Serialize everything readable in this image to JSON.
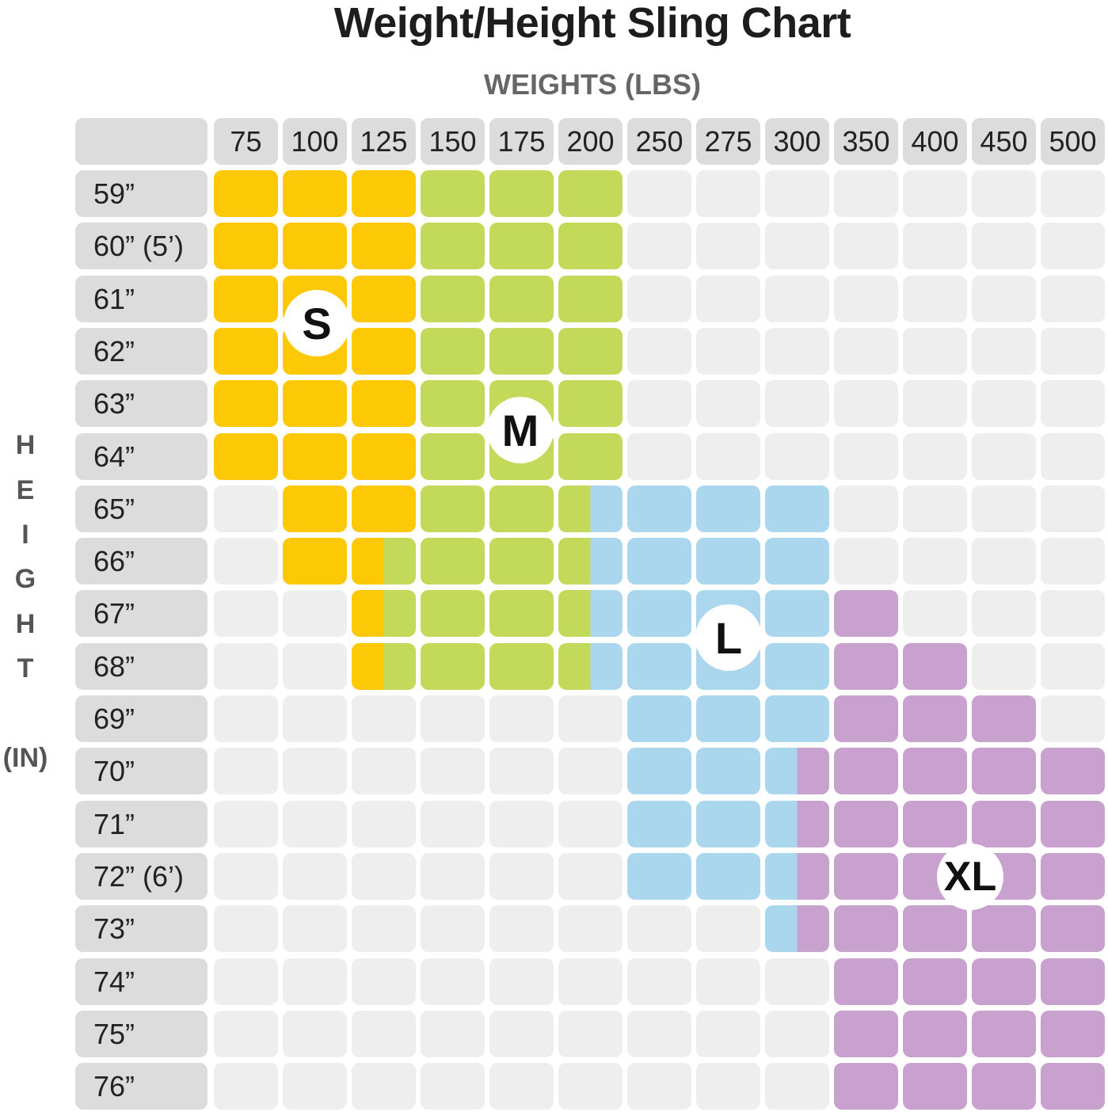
{
  "chart_data": {
    "type": "table",
    "title": "Weight/Height Sling Chart",
    "xlabel": "WEIGHTS (LBS)",
    "ylabel": [
      "H",
      "E",
      "I",
      "G",
      "H",
      "T",
      "(IN)"
    ],
    "weights": [
      "75",
      "100",
      "125",
      "150",
      "175",
      "200",
      "250",
      "275",
      "300",
      "350",
      "400",
      "450",
      "500"
    ],
    "heights": [
      "59”",
      "60” (5’)",
      "61”",
      "62”",
      "63”",
      "64”",
      "65”",
      "66”",
      "67”",
      "68”",
      "69”",
      "70”",
      "71”",
      "72” (6’)",
      "73”",
      "74”",
      "75”",
      "76”"
    ],
    "sizes": {
      "S": "S",
      "M": "M",
      "L": "L",
      "XL": "XL"
    },
    "colors": {
      "S": "#fdc907",
      "M": "#c3d95a",
      "L": "#abd7ee",
      "XL": "#c9a1cf",
      "empty": "#eeeeee",
      "header": "#dcdcdc"
    },
    "grid": [
      [
        "S",
        "S",
        "S",
        "M",
        "M",
        "M",
        "",
        "",
        "",
        "",
        "",
        "",
        ""
      ],
      [
        "S",
        "S",
        "S",
        "M",
        "M",
        "M",
        "",
        "",
        "",
        "",
        "",
        "",
        ""
      ],
      [
        "S",
        "S",
        "S",
        "M",
        "M",
        "M",
        "",
        "",
        "",
        "",
        "",
        "",
        ""
      ],
      [
        "S",
        "S",
        "S",
        "M",
        "M",
        "M",
        "",
        "",
        "",
        "",
        "",
        "",
        ""
      ],
      [
        "S",
        "S",
        "S",
        "M",
        "M",
        "M",
        "",
        "",
        "",
        "",
        "",
        "",
        ""
      ],
      [
        "S",
        "S",
        "S",
        "M",
        "M",
        "M",
        "",
        "",
        "",
        "",
        "",
        "",
        ""
      ],
      [
        "",
        "S",
        "S",
        "M",
        "M",
        "M/L",
        "L",
        "L",
        "L",
        "",
        "",
        "",
        ""
      ],
      [
        "",
        "S",
        "S/M",
        "M",
        "M",
        "M/L",
        "L",
        "L",
        "L",
        "",
        "",
        "",
        ""
      ],
      [
        "",
        "",
        "S/M",
        "M",
        "M",
        "M/L",
        "L",
        "L",
        "L",
        "XL",
        "",
        "",
        ""
      ],
      [
        "",
        "",
        "S/M",
        "M",
        "M",
        "M/L",
        "L",
        "L",
        "L",
        "XL",
        "XL",
        "",
        ""
      ],
      [
        "",
        "",
        "",
        "",
        "",
        "",
        "L",
        "L",
        "L",
        "XL",
        "XL",
        "XL",
        ""
      ],
      [
        "",
        "",
        "",
        "",
        "",
        "",
        "L",
        "L",
        "L/XL",
        "XL",
        "XL",
        "XL",
        "XL"
      ],
      [
        "",
        "",
        "",
        "",
        "",
        "",
        "L",
        "L",
        "L/XL",
        "XL",
        "XL",
        "XL",
        "XL"
      ],
      [
        "",
        "",
        "",
        "",
        "",
        "",
        "L",
        "L",
        "L/XL",
        "XL",
        "XL",
        "XL",
        "XL"
      ],
      [
        "",
        "",
        "",
        "",
        "",
        "",
        "",
        "",
        "L/XL",
        "XL",
        "XL",
        "XL",
        "XL"
      ],
      [
        "",
        "",
        "",
        "",
        "",
        "",
        "",
        "",
        "",
        "XL",
        "XL",
        "XL",
        "XL"
      ],
      [
        "",
        "",
        "",
        "",
        "",
        "",
        "",
        "",
        "",
        "XL",
        "XL",
        "XL",
        "XL"
      ],
      [
        "",
        "",
        "",
        "",
        "",
        "",
        "",
        "",
        "",
        "XL",
        "XL",
        "XL",
        "XL"
      ]
    ]
  }
}
